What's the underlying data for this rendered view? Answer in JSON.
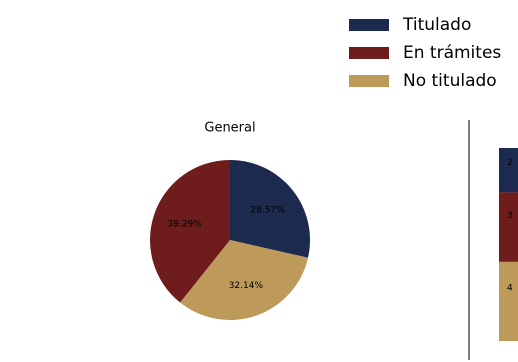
{
  "colors": {
    "titulado": "#1b2a4e",
    "en_tramites": "#6e1c1c",
    "no_titulado": "#bd995a",
    "axis": "#000000"
  },
  "legend": {
    "items": [
      {
        "label": "Titulado",
        "color": "#1b2a4e"
      },
      {
        "label": "En trámites",
        "color": "#6e1c1c"
      },
      {
        "label": "No titulado",
        "color": "#bd995a"
      }
    ]
  },
  "chart_data": [
    {
      "type": "pie",
      "title": "General",
      "labels": [
        "Titulado",
        "No titulado",
        "En trámites"
      ],
      "values": [
        28.57,
        32.14,
        39.29
      ],
      "value_labels": [
        "28.57%",
        "32.14%",
        "39.29%"
      ],
      "colors": [
        "#1b2a4e",
        "#bd995a",
        "#6e1c1c"
      ],
      "start_angle_deg": 90,
      "direction": "clockwise"
    },
    {
      "type": "bar",
      "stacked": true,
      "title": "",
      "categories": [
        ""
      ],
      "series": [
        {
          "name": "Titulado",
          "values": [
            23
          ],
          "visible_label": "2"
        },
        {
          "name": "En trámites",
          "values": [
            36
          ],
          "visible_label": "3"
        },
        {
          "name": "No titulado",
          "values": [
            41
          ],
          "visible_label": "4"
        }
      ],
      "note": ""
    }
  ]
}
